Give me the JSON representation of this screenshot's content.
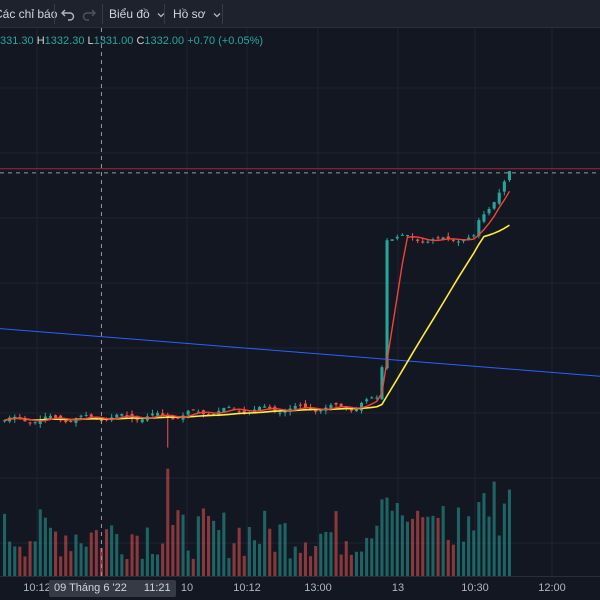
{
  "toolbar": {
    "indicators_label": "Các chỉ báo",
    "chart_menu_label": "Biểu đồ",
    "profile_menu_label": "Hồ sơ",
    "undo_icon": "undo-icon",
    "redo_icon": "redo-icon",
    "chevron_icon": "chevron-down-icon"
  },
  "legend": {
    "open_value": "331.30",
    "high_label": "H",
    "high_value": "1332.30",
    "low_label": "L",
    "low_value": "1331.00",
    "close_label": "C",
    "close_value": "1332.00",
    "change": "+0.70 (+0.05%)"
  },
  "xaxis": {
    "ticks": [
      "10:12",
      "10",
      "10:12",
      "13:00",
      "13",
      "10:30",
      "12:00"
    ],
    "crosshair_date": "09 Tháng 6 '22",
    "crosshair_time": "11:21"
  },
  "colors": {
    "background": "#131722",
    "up": "#26a69a",
    "down": "#ef5350",
    "ma_fast": "#f44336",
    "ma_slow": "#ffeb3b",
    "trendline": "#2962ff",
    "last_price_line": "#f23645"
  },
  "chart_data": {
    "type": "candlestick",
    "title": "",
    "xlabel": "",
    "ylabel": "",
    "x_ticks": [
      "10:12",
      "10",
      "10:12",
      "13:00",
      "13",
      "10:30",
      "12:00"
    ],
    "ylim": [
      1288,
      1338
    ],
    "segments": [
      {
        "from": 0,
        "to": 36,
        "base": 1295.0,
        "drift": 0.02,
        "noise": 0.5
      },
      {
        "from": 36,
        "to": 47,
        "base": 1296.0,
        "drift": 0.06,
        "noise": 0.5
      },
      {
        "from": 47,
        "to": 70,
        "base": 1296.5,
        "drift": 0.02,
        "noise": 0.5
      },
      {
        "from": 70,
        "to": 74,
        "base": 1297.5,
        "drift": 0.25,
        "noise": 0.4
      },
      {
        "from": 74,
        "to": 75,
        "base": 1303.0,
        "drift": 0.0,
        "noise": 0.3
      },
      {
        "from": 75,
        "to": 85,
        "base": 1322.0,
        "drift": -0.05,
        "noise": 0.5
      },
      {
        "from": 85,
        "to": 93,
        "base": 1321.5,
        "drift": 0.05,
        "noise": 0.4
      },
      {
        "from": 93,
        "to": 100,
        "base": 1324.0,
        "drift": 1.2,
        "noise": 0.5
      }
    ],
    "n_candles": 100,
    "dip_index": 32,
    "dip_low": 1291.0,
    "volume_spike_index": 32,
    "ma_periods": [
      5,
      20
    ],
    "last_price": 1332.0,
    "trendline": {
      "from_price": 1308.5,
      "to_price": 1301.5
    },
    "crosshair_index": 19,
    "legend_visible": true,
    "grid": true
  }
}
